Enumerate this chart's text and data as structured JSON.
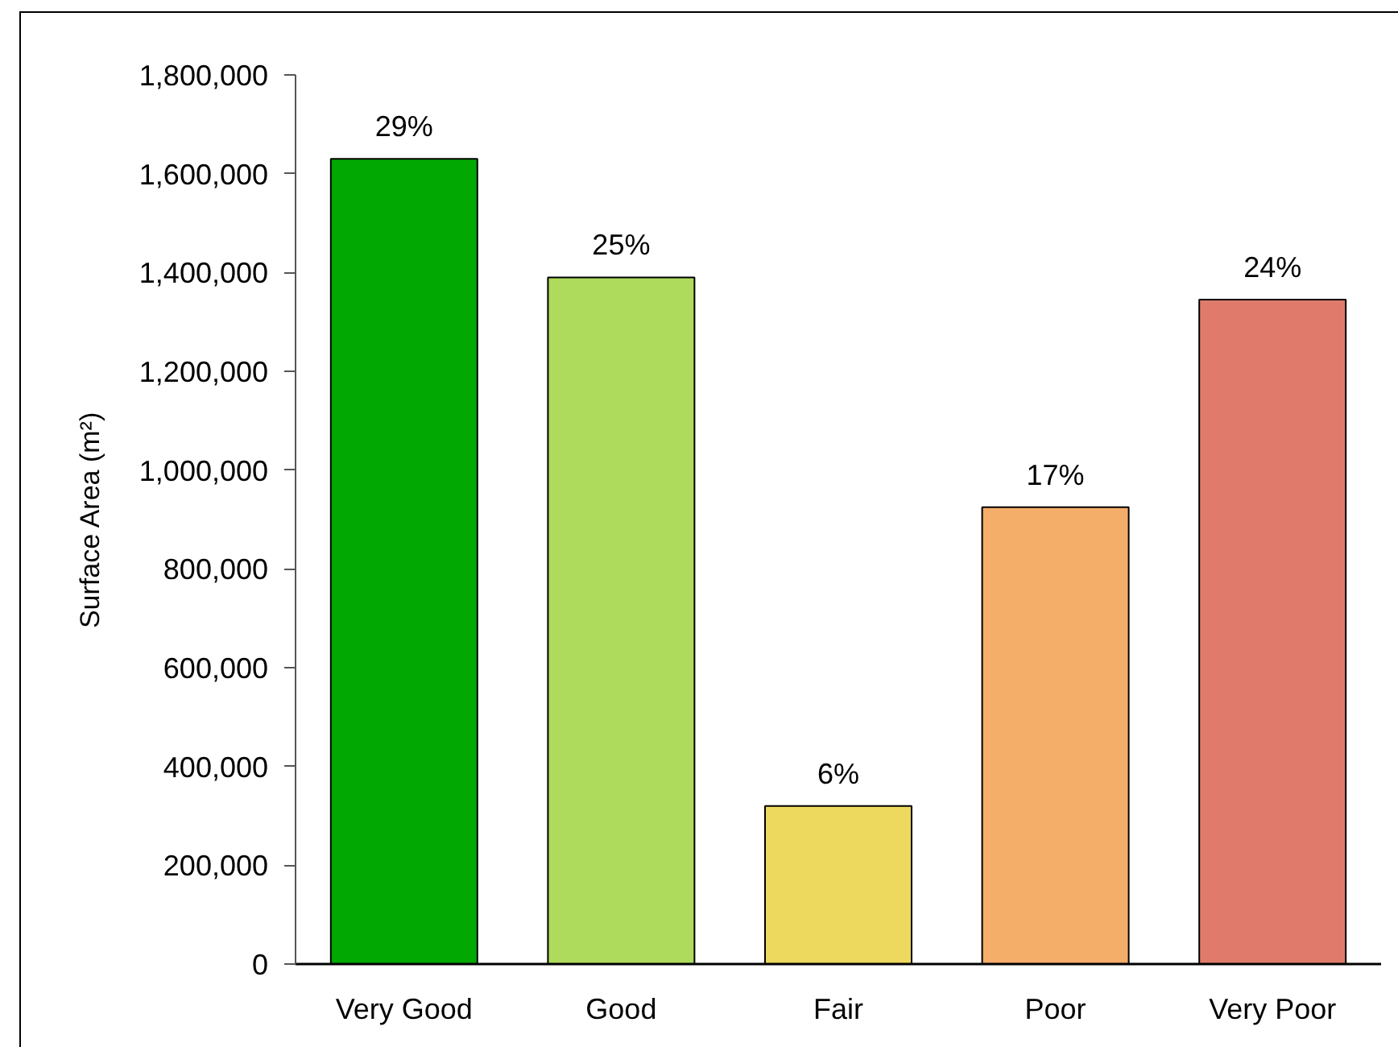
{
  "chart_data": {
    "type": "bar",
    "ylabel": "Surface Area (m²)",
    "categories": [
      "Very Good",
      "Good",
      "Fair",
      "Poor",
      "Very Poor"
    ],
    "values": [
      1630000,
      1390000,
      320000,
      925000,
      1345000
    ],
    "colors": [
      "#02a802",
      "#aedb5b",
      "#eed95f",
      "#f5ad6a",
      "#e07b6c"
    ],
    "annotations": [
      {
        "text": "29%",
        "x": "Very Good",
        "y": 1630000
      },
      {
        "text": "25%",
        "x": "Good",
        "y": 1390000
      },
      {
        "text": "6%",
        "x": "Fair",
        "y": 320000
      },
      {
        "text": "17%",
        "x": "Poor",
        "y": 925000
      },
      {
        "text": "24%",
        "x": "Very Poor",
        "y": 1345000
      }
    ],
    "ylim": [
      0,
      1800000
    ],
    "yticks": [
      0,
      {
        "value": 200000,
        "label": "200,000"
      },
      {
        "value": 400000,
        "label": "400,000"
      },
      {
        "value": 600000,
        "label": "600,000"
      },
      {
        "value": 800000,
        "label": "800,000"
      },
      {
        "value": 1000000,
        "label": "1,000,000"
      },
      {
        "value": 1200000,
        "label": "1,200,000"
      },
      {
        "value": 1400000,
        "label": "1,400,000"
      },
      {
        "value": 1600000,
        "label": "1,600,000"
      },
      {
        "value": 1800000,
        "label": "1,800,000"
      }
    ]
  }
}
